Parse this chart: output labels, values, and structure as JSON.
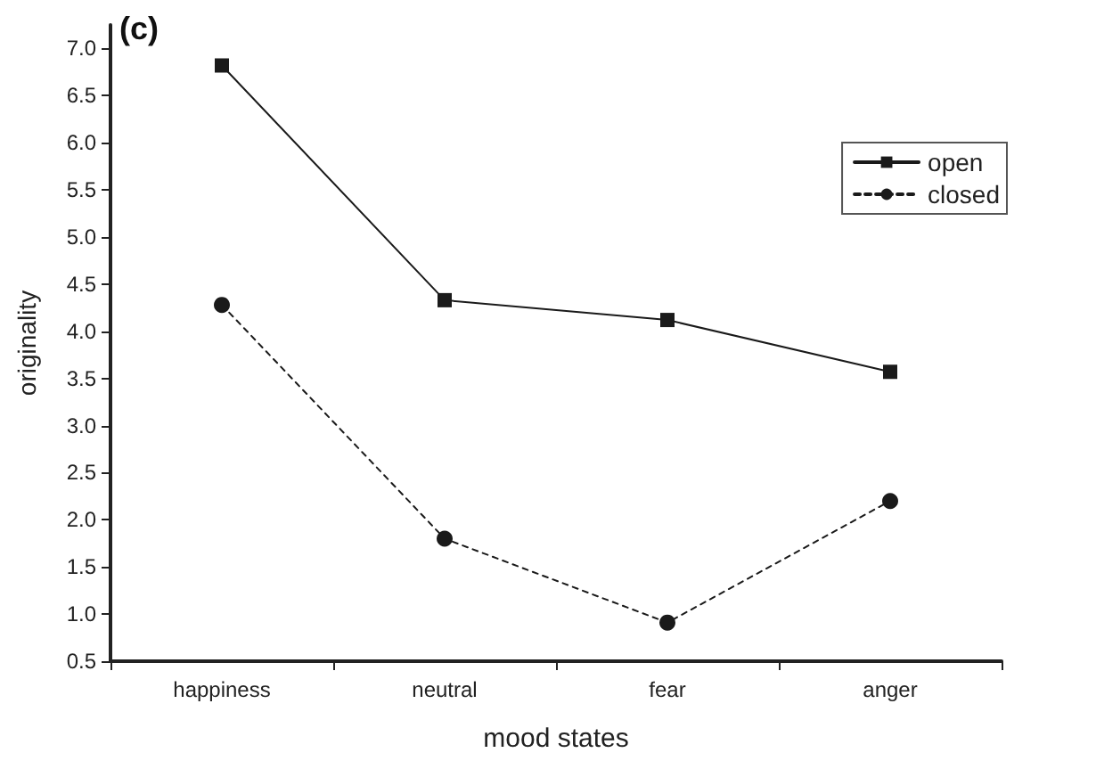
{
  "chart_data": {
    "type": "line",
    "title": "(c)",
    "xlabel": "mood states",
    "ylabel": "originality",
    "categories": [
      "happiness",
      "neutral",
      "fear",
      "anger"
    ],
    "series": [
      {
        "name": "open",
        "color": "#1a1a1a",
        "values": [
          6.82,
          4.33,
          4.12,
          3.57
        ],
        "marker": "square",
        "line_style": "solid"
      },
      {
        "name": "closed",
        "color": "#1a1a1a",
        "values": [
          4.28,
          1.8,
          0.91,
          2.2
        ],
        "marker": "circle",
        "line_style": "dashed"
      }
    ],
    "ylim": [
      0.5,
      7.25
    ],
    "yticks": [
      0.5,
      {
        "value": 1,
        "label": "1.0"
      },
      1.5,
      {
        "value": 2,
        "label": "2.0"
      },
      2.5,
      {
        "value": 3,
        "label": "3.0"
      },
      3.5,
      {
        "value": 4,
        "label": "4.0"
      },
      4.5,
      {
        "value": 5,
        "label": "5.0"
      },
      5.5,
      {
        "value": 6,
        "label": "6.0"
      },
      6.5,
      {
        "value": 7,
        "label": "7.0"
      }
    ],
    "grid": false,
    "legend": "top right"
  }
}
